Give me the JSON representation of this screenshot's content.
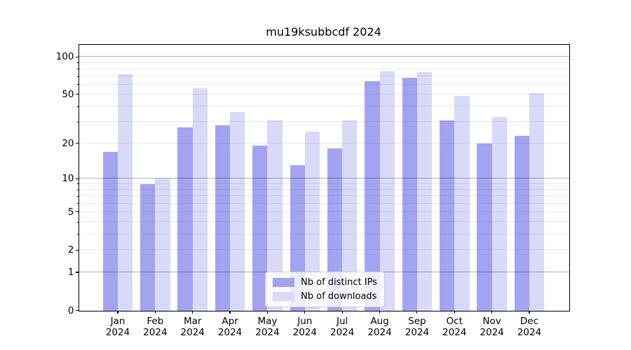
{
  "title": "mu19ksubbcdf 2024",
  "legend": {
    "items": [
      {
        "label": "Nb of distinct IPs",
        "key": "ips"
      },
      {
        "label": "Nb of downloads",
        "key": "downloads"
      }
    ]
  },
  "colors": {
    "ips": "#a3a3f0",
    "downloads": "#d9d9f8",
    "grid_major": "rgba(0,0,0,0.30)",
    "grid_minor": "rgba(0,0,0,0.085)",
    "axis": "#000000",
    "legend_border": "#cccccc"
  },
  "chart_data": {
    "type": "bar",
    "title": "mu19ksubbcdf 2024",
    "categories": [
      "Jan 2024",
      "Feb 2024",
      "Mar 2024",
      "Apr 2024",
      "May 2024",
      "Jun 2024",
      "Jul 2024",
      "Aug 2024",
      "Sep 2024",
      "Oct 2024",
      "Nov 2024",
      "Dec 2024"
    ],
    "series": [
      {
        "name": "Nb of distinct IPs",
        "color": "#a3a3f0",
        "values": [
          17,
          9,
          27,
          28,
          19,
          13,
          18,
          64,
          68,
          31,
          20,
          23
        ]
      },
      {
        "name": "Nb of downloads",
        "color": "#d9d9f8",
        "values": [
          73,
          10,
          56,
          36,
          31,
          25,
          31,
          77,
          76,
          49,
          33,
          51
        ]
      }
    ],
    "xlabel": "",
    "ylabel": "",
    "yscale": "log1p",
    "ylim": [
      0,
      125
    ],
    "yticks": [
      0,
      1,
      2,
      5,
      10,
      20,
      50,
      100
    ],
    "yticks_minor": [
      3,
      4,
      6,
      7,
      8,
      9,
      30,
      40,
      60,
      70,
      80,
      90
    ],
    "yticks_major_lines": [
      1,
      10,
      100
    ],
    "grid": true,
    "legend_position": "lower center"
  }
}
